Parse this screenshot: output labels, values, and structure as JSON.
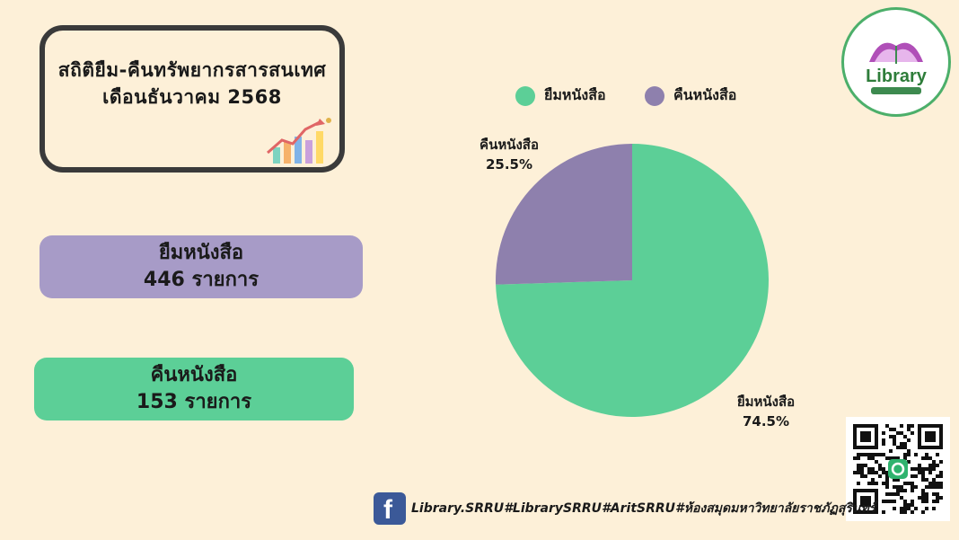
{
  "header": {
    "title_line1": "สถิติยืม-คืนทรัพยากรสารสนเทศ",
    "title_line2": "เดือนธันวาคม 2568"
  },
  "stats": {
    "borrow": {
      "label": "ยืมหนังสือ",
      "count_text": "446 รายการ"
    },
    "return": {
      "label": "คืนหนังสือ",
      "count_text": "153 รายการ"
    }
  },
  "logo": {
    "text": "Library"
  },
  "footer": {
    "text": "Library.SRRU#LibrarySRRU#AritSRRU#ห้องสมุดมหาวิทยาลัยราชภัฏสุรินทร์"
  },
  "colors": {
    "borrow": "#5ccf97",
    "return": "#8e80ad",
    "borrow_card": "#a79bc7",
    "background": "#fdf0d8"
  },
  "chart_data": {
    "type": "pie",
    "legend_position": "top",
    "slices": [
      {
        "name": "ยืมหนังสือ",
        "value": 74.5,
        "label": "74.5%",
        "color": "#5ccf97"
      },
      {
        "name": "คืนหนังสือ",
        "value": 25.5,
        "label": "25.5%",
        "color": "#8e80ad"
      }
    ]
  }
}
